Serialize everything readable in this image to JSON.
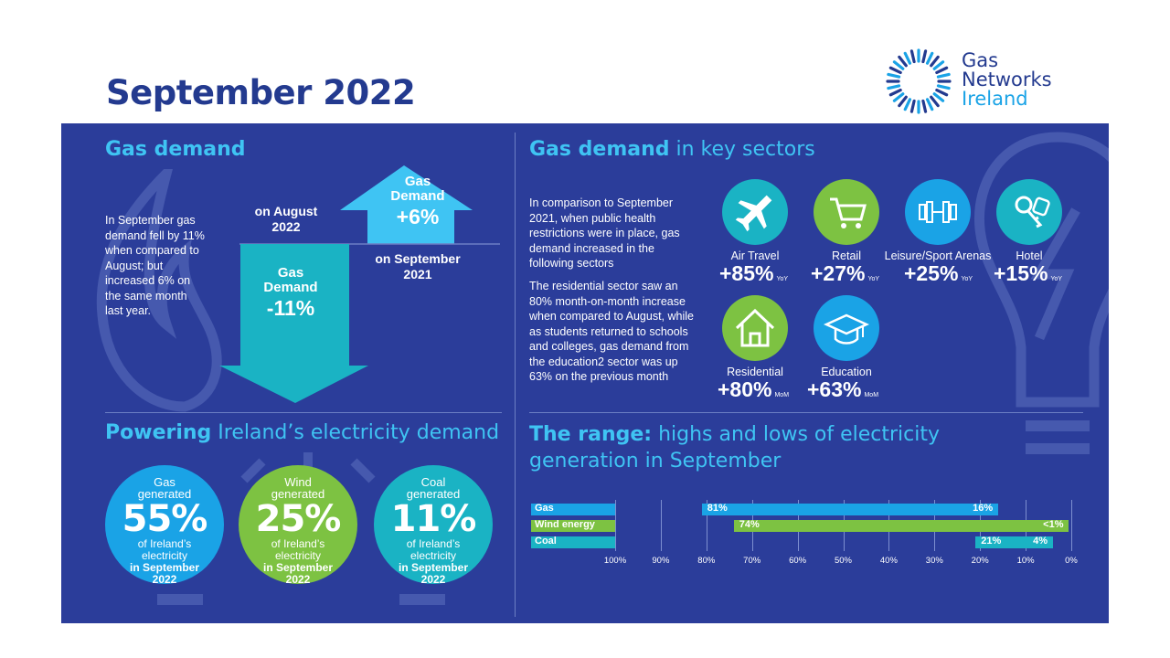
{
  "title": "September 2022",
  "logo": {
    "line1": "Gas",
    "line2": "Networks",
    "line3": "Ireland"
  },
  "gas_demand": {
    "heading": "Gas demand",
    "description": "In September gas demand fell by 11% when compared to August; but increased 6% on the same month last year.",
    "up_arrow": {
      "line1": "Gas",
      "line2": "Demand",
      "value": "+6%",
      "caption_line1": "on September",
      "caption_line2": "2021"
    },
    "down_arrow": {
      "line1": "Gas",
      "line2": "Demand",
      "value": "-11%",
      "caption_line1": "on August",
      "caption_line2": "2022"
    }
  },
  "sectors": {
    "heading_bold": "Gas demand",
    "heading_rest": " in key sectors",
    "para1": "In comparison to September 2021, when public health restrictions were in place, gas demand increased in the following sectors",
    "para2": "The residential sector saw an 80% month-on-month increase when compared to August, while as students returned to schools and colleges, gas demand from the education2 sector was up 63% on the previous month",
    "items": [
      {
        "name": "Air Travel",
        "value": "+85%",
        "unit": "YoY",
        "icon": "airplane-icon",
        "color": "#1ab3c4"
      },
      {
        "name": "Retail",
        "value": "+27%",
        "unit": "YoY",
        "icon": "shopping-cart-icon",
        "color": "#7dc242"
      },
      {
        "name": "Leisure/Sport Arenas",
        "value": "+25%",
        "unit": "YoY",
        "icon": "dumbbell-icon",
        "color": "#1aa3e6"
      },
      {
        "name": "Hotel",
        "value": "+15%",
        "unit": "YoY",
        "icon": "key-icon",
        "color": "#1ab3c4"
      },
      {
        "name": "Residential",
        "value": "+80%",
        "unit": "MoM",
        "icon": "house-icon",
        "color": "#7dc242"
      },
      {
        "name": "Education",
        "value": "+63%",
        "unit": "MoM",
        "icon": "graduation-cap-icon",
        "color": "#1aa3e6"
      }
    ]
  },
  "powering": {
    "heading_bold": "Powering",
    "heading_rest": " Ireland’s electricity demand",
    "circles": [
      {
        "line1": "Gas",
        "line2": "generated",
        "pct": "55%",
        "line3": "of Ireland’s",
        "line4": "electricity",
        "line5": "in September",
        "line6": "2022",
        "color": "#1aa3e6"
      },
      {
        "line1": "Wind",
        "line2": "generated",
        "pct": "25%",
        "line3": "of Ireland’s",
        "line4": "electricity",
        "line5": "in September",
        "line6": "2022",
        "color": "#7dc242"
      },
      {
        "line1": "Coal",
        "line2": "generated",
        "pct": "11%",
        "line3": "of Ireland’s",
        "line4": "electricity",
        "line5": "in September",
        "line6": "2022",
        "color": "#1ab3c4"
      }
    ]
  },
  "range": {
    "heading_bold": "The range:",
    "heading_rest_line1": " highs and lows of electricity",
    "heading_rest_line2": "generation in September"
  },
  "chart_data": {
    "type": "bar",
    "orientation": "horizontal-range",
    "categories": [
      "Gas",
      "Wind energy",
      "Coal"
    ],
    "series": [
      {
        "name": "Gas",
        "high": 81,
        "low": 16,
        "high_label": "81%",
        "low_label": "16%",
        "color": "#1aa3e6"
      },
      {
        "name": "Wind energy",
        "high": 74,
        "low": 0.5,
        "high_label": "74%",
        "low_label": "<1%",
        "color": "#7dc242"
      },
      {
        "name": "Coal",
        "high": 21,
        "low": 4,
        "high_label": "21%",
        "low_label": "4%",
        "color": "#1ab3c4"
      }
    ],
    "x_ticks": [
      "100%",
      "90%",
      "80%",
      "70%",
      "60%",
      "50%",
      "40%",
      "30%",
      "20%",
      "10%",
      "0%"
    ],
    "xlim": [
      100,
      0
    ],
    "grid": true,
    "legend": "none"
  }
}
